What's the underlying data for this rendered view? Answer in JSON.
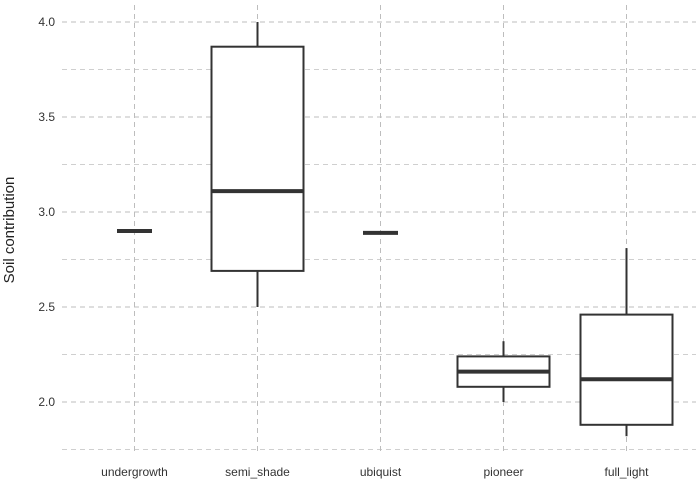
{
  "chart_data": {
    "type": "boxplot",
    "title": "",
    "xlabel": "",
    "ylabel": "Soil contribution",
    "ylim": [
      1.72,
      4.06
    ],
    "yticks": [
      2.0,
      2.5,
      3.0,
      3.5,
      4.0
    ],
    "ytick_labels": [
      "2.0",
      "2.5",
      "3.0",
      "3.5",
      "4.0"
    ],
    "grid": true,
    "categories": [
      "undergrowth",
      "semi_shade",
      "ubiquist",
      "pioneer",
      "full_light"
    ],
    "boxes": [
      {
        "category": "undergrowth",
        "min": 2.9,
        "q1": 2.9,
        "median": 2.9,
        "q3": 2.9,
        "max": 2.9
      },
      {
        "category": "semi_shade",
        "min": 2.5,
        "q1": 2.69,
        "median": 3.11,
        "q3": 3.87,
        "max": 4.0
      },
      {
        "category": "ubiquist",
        "min": 2.89,
        "q1": 2.89,
        "median": 2.89,
        "q3": 2.89,
        "max": 2.89
      },
      {
        "category": "pioneer",
        "min": 2.0,
        "q1": 2.08,
        "median": 2.16,
        "q3": 2.24,
        "max": 2.32
      },
      {
        "category": "full_light",
        "min": 1.82,
        "q1": 1.88,
        "median": 2.12,
        "q3": 2.46,
        "max": 2.81
      }
    ],
    "colors": {
      "box_stroke": "#333333",
      "box_fill": "#ffffff",
      "grid": "#bdbdbd"
    }
  }
}
